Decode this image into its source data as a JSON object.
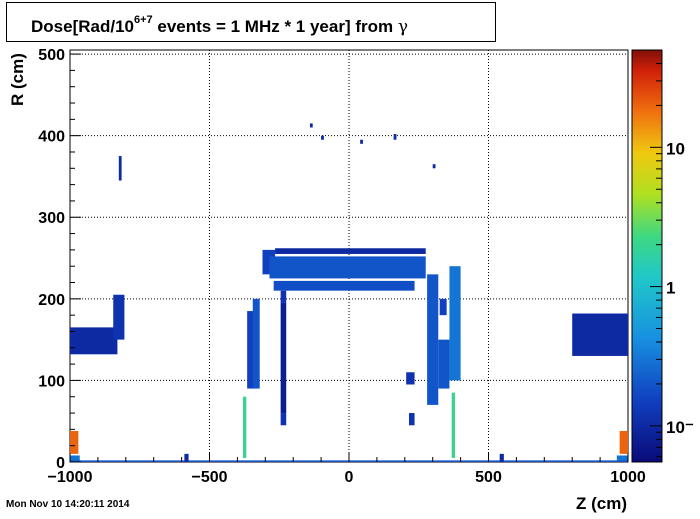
{
  "title": {
    "prefix": "Dose[Rad/10",
    "superscript": "6+7",
    "suffix": " events = 1 MHz * 1 year] from ",
    "particle": "γ"
  },
  "timestamp": "Mon Nov 10 14:20:11 2014",
  "chart_data": {
    "type": "heatmap",
    "xlabel": "Z (cm)",
    "ylabel": "R (cm)",
    "xlim": [
      -1000,
      1000
    ],
    "ylim": [
      0,
      505
    ],
    "xticks": [
      -1000,
      -500,
      0,
      500,
      1000
    ],
    "yticks": [
      0,
      100,
      200,
      300,
      400,
      500
    ],
    "x_tick_labels": [
      "−1000",
      "−500",
      "0",
      "500",
      "1000"
    ],
    "y_tick_labels": [
      "0",
      "100",
      "200",
      "300",
      "400",
      "500"
    ],
    "grid": true,
    "colorbar": {
      "scale": "log",
      "range": [
        0.055,
        50
      ],
      "ticks": [
        {
          "value": 0.1,
          "label": "10⁻"
        },
        {
          "value": 1,
          "label": "1"
        },
        {
          "value": 10,
          "label": "10"
        }
      ]
    },
    "regions": [
      {
        "z": [
          -1000,
          -830
        ],
        "r": [
          132,
          165
        ],
        "value": 0.1
      },
      {
        "z": [
          -845,
          -805
        ],
        "r": [
          150,
          205
        ],
        "value": 0.12
      },
      {
        "z": [
          -825,
          -815
        ],
        "r": [
          345,
          375
        ],
        "value": 0.1
      },
      {
        "z": [
          -1000,
          -970
        ],
        "r": [
          10,
          38
        ],
        "value": 20
      },
      {
        "z": [
          -1000,
          -965
        ],
        "r": [
          0,
          8
        ],
        "value": 0.3
      },
      {
        "z": [
          970,
          1000
        ],
        "r": [
          10,
          38
        ],
        "value": 20
      },
      {
        "z": [
          960,
          1000
        ],
        "r": [
          0,
          8
        ],
        "value": 0.3
      },
      {
        "z": [
          800,
          1000
        ],
        "r": [
          130,
          182
        ],
        "value": 0.1
      },
      {
        "z": [
          -365,
          -340
        ],
        "r": [
          90,
          185
        ],
        "value": 0.15
      },
      {
        "z": [
          -345,
          -320
        ],
        "r": [
          90,
          200
        ],
        "value": 0.2
      },
      {
        "z": [
          -310,
          -265
        ],
        "r": [
          230,
          260
        ],
        "value": 0.15
      },
      {
        "z": [
          -285,
          275
        ],
        "r": [
          225,
          252
        ],
        "value": 0.2
      },
      {
        "z": [
          -270,
          235
        ],
        "r": [
          210,
          222
        ],
        "value": 0.18
      },
      {
        "z": [
          -265,
          275
        ],
        "r": [
          255,
          262
        ],
        "value": 0.1
      },
      {
        "z": [
          -245,
          -225
        ],
        "r": [
          45,
          60
        ],
        "value": 0.12
      },
      {
        "z": [
          -245,
          -225
        ],
        "r": [
          195,
          210
        ],
        "value": 0.12
      },
      {
        "z": [
          -245,
          -225
        ],
        "r": [
          60,
          195
        ],
        "value": 0.08
      },
      {
        "z": [
          215,
          235
        ],
        "r": [
          45,
          60
        ],
        "value": 0.12
      },
      {
        "z": [
          205,
          235
        ],
        "r": [
          95,
          110
        ],
        "value": 0.12
      },
      {
        "z": [
          280,
          320
        ],
        "r": [
          70,
          230
        ],
        "value": 0.2
      },
      {
        "z": [
          325,
          350
        ],
        "r": [
          180,
          200
        ],
        "value": 0.15
      },
      {
        "z": [
          320,
          360
        ],
        "r": [
          90,
          150
        ],
        "value": 0.2
      },
      {
        "z": [
          360,
          400
        ],
        "r": [
          100,
          240
        ],
        "value": 0.3
      },
      {
        "z": [
          -380,
          -368
        ],
        "r": [
          5,
          80
        ],
        "value": 2
      },
      {
        "z": [
          368,
          380
        ],
        "r": [
          5,
          85
        ],
        "value": 2
      },
      {
        "z": [
          -1000,
          1000
        ],
        "r": [
          0,
          2
        ],
        "value": 0.2
      },
      {
        "z": [
          -590,
          -575
        ],
        "r": [
          0,
          10
        ],
        "value": 0.1
      },
      {
        "z": [
          540,
          555
        ],
        "r": [
          0,
          10
        ],
        "value": 0.1
      },
      {
        "z": [
          -140,
          -130
        ],
        "r": [
          410,
          415
        ],
        "value": 0.1
      },
      {
        "z": [
          -100,
          -90
        ],
        "r": [
          395,
          400
        ],
        "value": 0.1
      },
      {
        "z": [
          40,
          50
        ],
        "r": [
          390,
          395
        ],
        "value": 0.1
      },
      {
        "z": [
          160,
          170
        ],
        "r": [
          395,
          402
        ],
        "value": 0.1
      },
      {
        "z": [
          300,
          310
        ],
        "r": [
          360,
          365
        ],
        "value": 0.1
      }
    ]
  }
}
